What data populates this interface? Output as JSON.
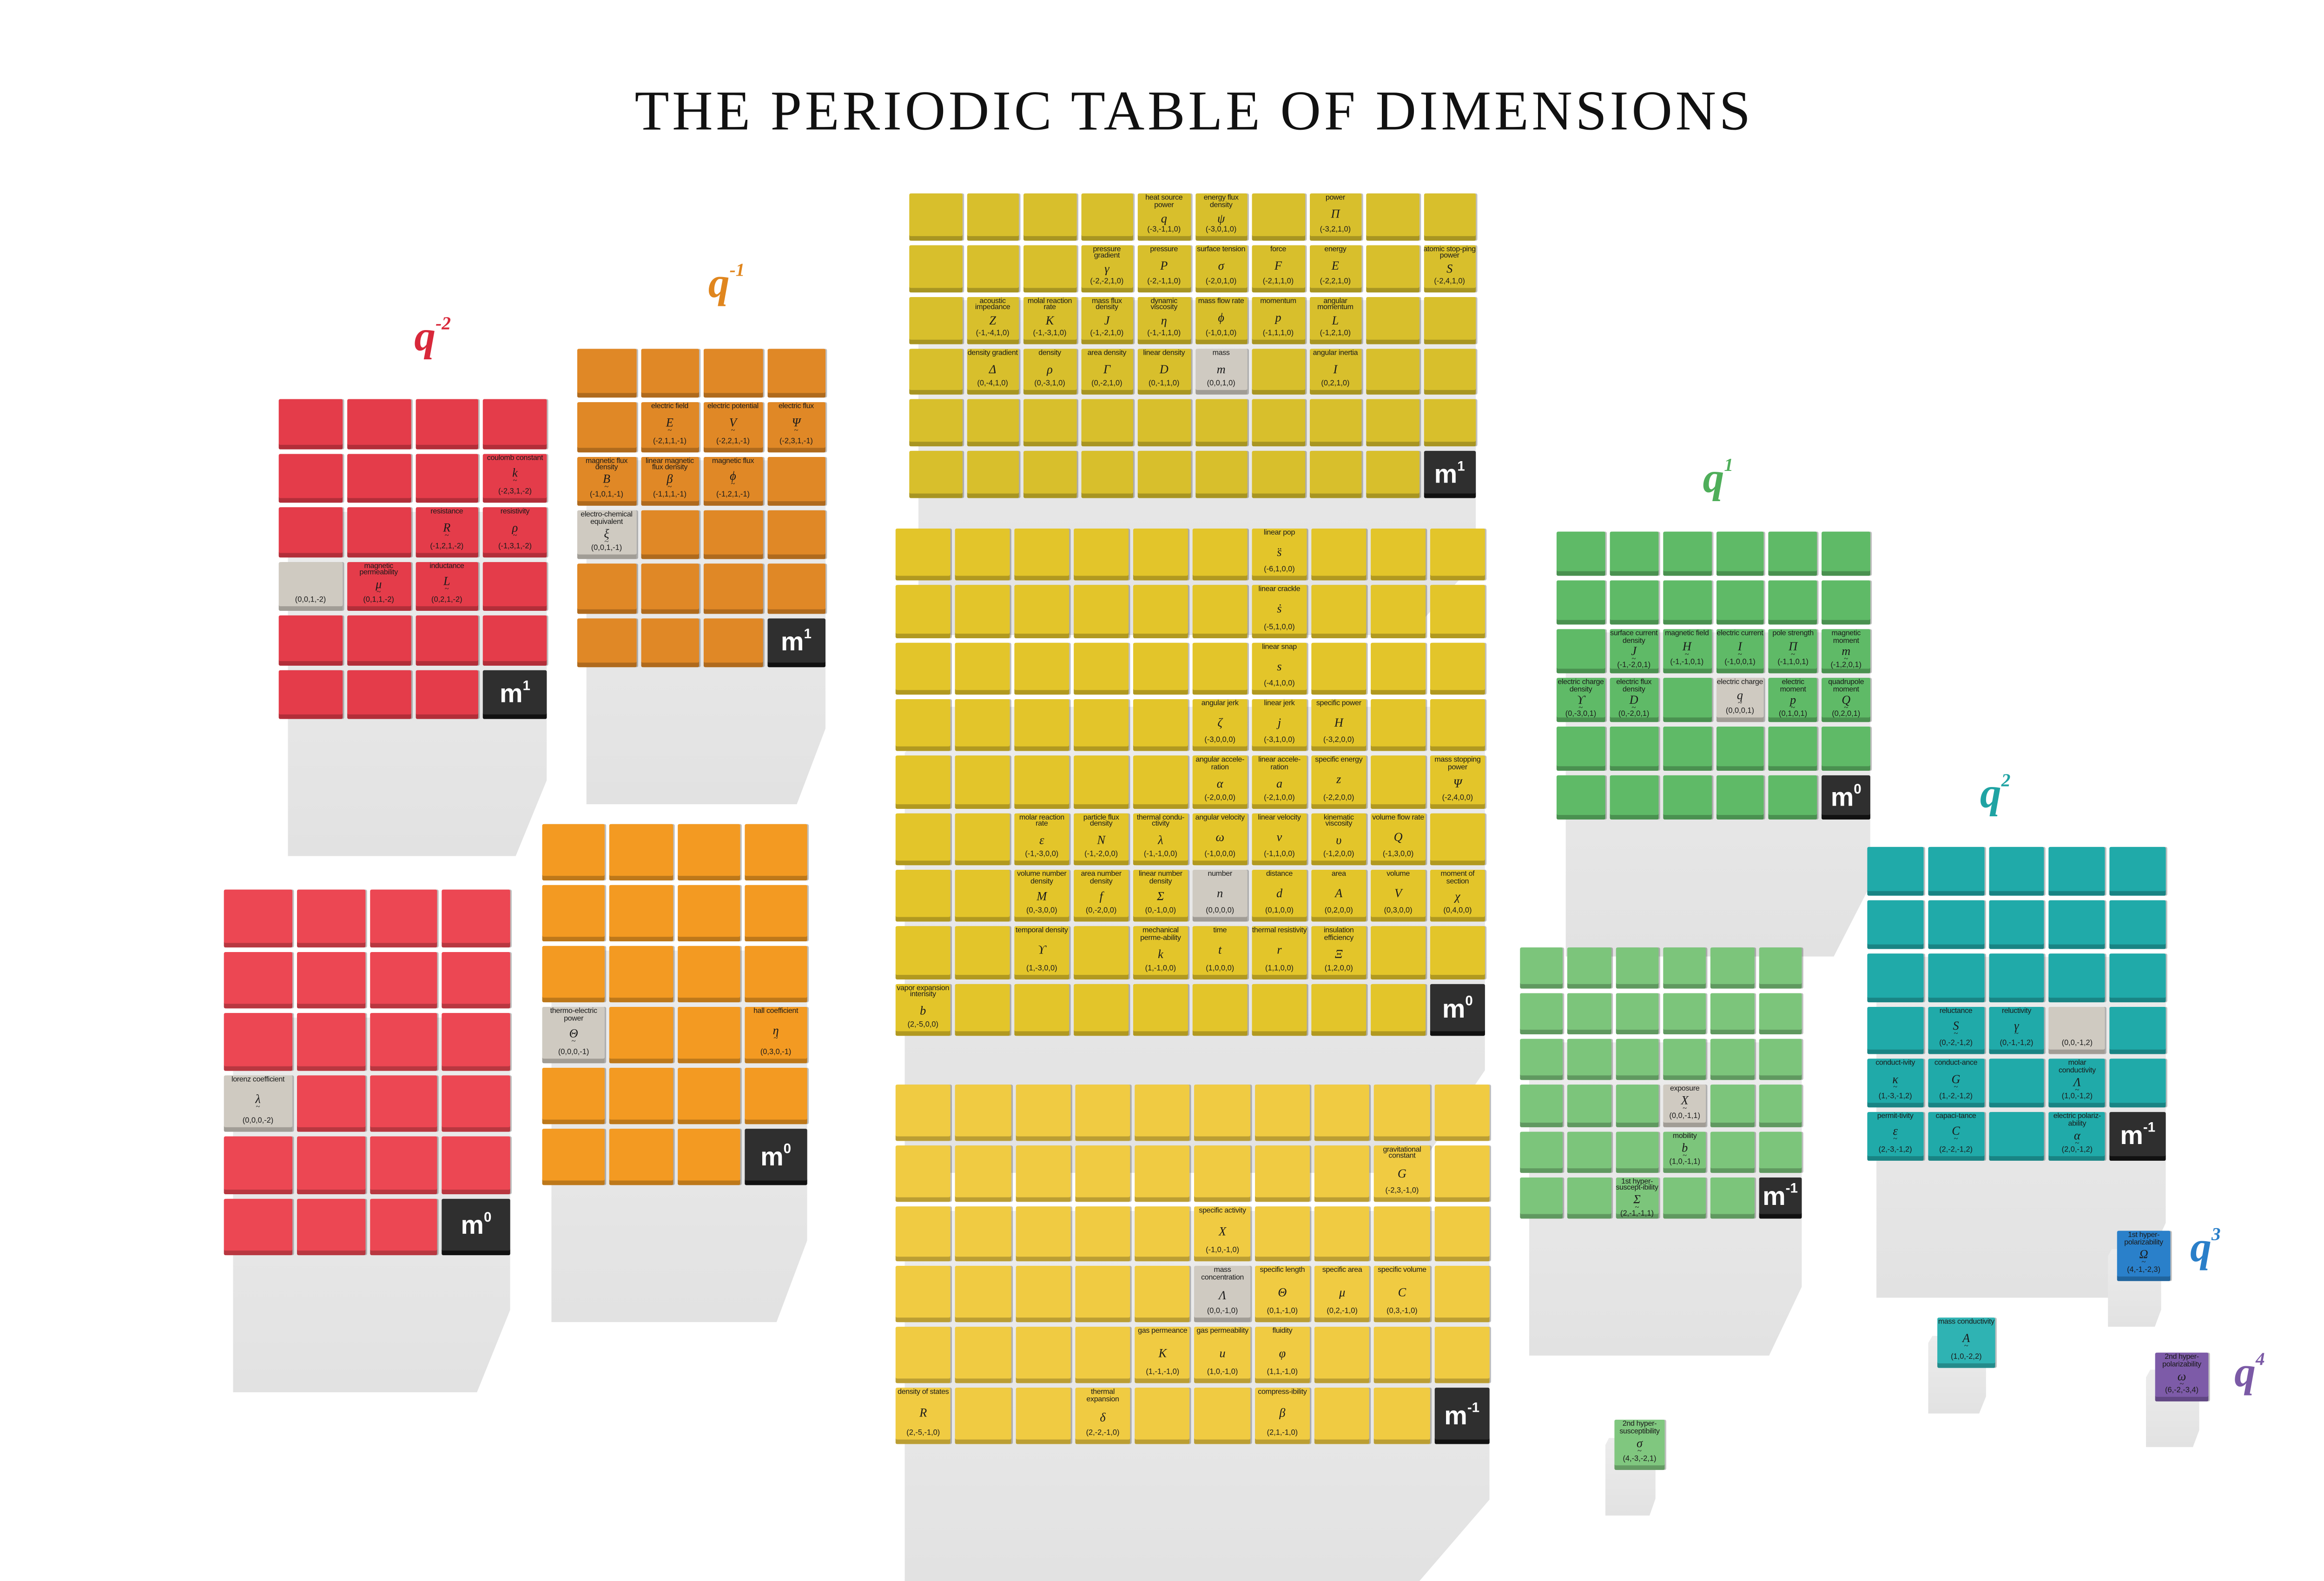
{
  "title": "THE PERIODIC TABLE OF DIMENSIONS",
  "groups": [
    {
      "id": "g-qm2",
      "base": "q",
      "exp": "-2",
      "color": "#d8283a"
    },
    {
      "id": "g-qm1",
      "base": "q",
      "exp": "-1",
      "color": "#e0861e"
    },
    {
      "id": "g-q1",
      "base": "q",
      "exp": "1",
      "color": "#4fae5a"
    },
    {
      "id": "g-q2",
      "base": "q",
      "exp": "2",
      "color": "#1fa3a3"
    },
    {
      "id": "g-q3",
      "base": "q",
      "exp": "3",
      "color": "#2a7fc9"
    },
    {
      "id": "g-q4",
      "base": "q",
      "exp": "4",
      "color": "#7b5aa6"
    }
  ],
  "blocks": [
    {
      "id": "b-red-m1",
      "color": "#e43c4a",
      "rows": 6,
      "cols": 4,
      "tilde": true,
      "badge": {
        "r": 6,
        "c": 4,
        "base": "m",
        "exp": "1"
      },
      "cells": [
        {
          "r": 2,
          "c": 4,
          "name": "coulomb constant",
          "sym": "k",
          "dims": "(-2,3,1,-2)"
        },
        {
          "r": 3,
          "c": 3,
          "name": "resistance",
          "sym": "R",
          "dims": "(-1,2,1,-2)"
        },
        {
          "r": 3,
          "c": 4,
          "name": "resistivity",
          "sym": "ρ",
          "dims": "(-1,3,1,-2)"
        },
        {
          "r": 4,
          "c": 1,
          "name": "",
          "sym": "",
          "dims": "(0,0,1,-2)",
          "gray": true
        },
        {
          "r": 4,
          "c": 2,
          "name": "magnetic permeability",
          "sym": "μ",
          "dims": "(0,1,1,-2)"
        },
        {
          "r": 4,
          "c": 3,
          "name": "inductance",
          "sym": "L",
          "dims": "(0,2,1,-2)"
        }
      ]
    },
    {
      "id": "b-red-m0",
      "color": "#ec4753",
      "rows": 6,
      "cols": 4,
      "tilde": true,
      "badge": {
        "r": 6,
        "c": 4,
        "base": "m",
        "exp": "0"
      },
      "cells": [
        {
          "r": 4,
          "c": 1,
          "name": "lorenz coefficient",
          "sym": "λ",
          "dims": "(0,0,0,-2)",
          "gray": true
        }
      ]
    },
    {
      "id": "b-orange-m1",
      "color": "#e08826",
      "rows": 6,
      "cols": 4,
      "tilde": true,
      "badge": {
        "r": 6,
        "c": 4,
        "base": "m",
        "exp": "1"
      },
      "cells": [
        {
          "r": 2,
          "c": 2,
          "name": "electric field",
          "sym": "E",
          "dims": "(-2,1,1,-1)"
        },
        {
          "r": 2,
          "c": 3,
          "name": "electric potential",
          "sym": "V",
          "dims": "(-2,2,1,-1)"
        },
        {
          "r": 2,
          "c": 4,
          "name": "electric flux",
          "sym": "Ψ",
          "dims": "(-2,3,1,-1)"
        },
        {
          "r": 3,
          "c": 1,
          "name": "magnetic flux density",
          "sym": "B",
          "dims": "(-1,0,1,-1)"
        },
        {
          "r": 3,
          "c": 2,
          "name": "linear magnetic flux density",
          "sym": "β",
          "dims": "(-1,1,1,-1)"
        },
        {
          "r": 3,
          "c": 3,
          "name": "magnetic flux",
          "sym": "ϕ",
          "dims": "(-1,2,1,-1)"
        },
        {
          "r": 4,
          "c": 1,
          "name": "electro-chemical equivalent",
          "sym": "ξ",
          "dims": "(0,0,1,-1)",
          "gray": true
        }
      ]
    },
    {
      "id": "b-orange-m0",
      "color": "#f39a22",
      "rows": 6,
      "cols": 4,
      "tilde": true,
      "badge": {
        "r": 6,
        "c": 4,
        "base": "m",
        "exp": "0"
      },
      "cells": [
        {
          "r": 4,
          "c": 1,
          "name": "thermo-electric power",
          "sym": "Θ",
          "dims": "(0,0,0,-1)",
          "gray": true
        },
        {
          "r": 4,
          "c": 4,
          "name": "hall coefficient",
          "sym": "η",
          "dims": "(0,3,0,-1)"
        }
      ]
    },
    {
      "id": "b-yellow-m1",
      "color": "#d8bf2c",
      "rows": 6,
      "cols": 10,
      "tilde": false,
      "badge": {
        "r": 6,
        "c": 10,
        "base": "m",
        "exp": "1"
      },
      "cells": [
        {
          "r": 1,
          "c": 5,
          "name": "heat source power",
          "sym": "q",
          "dims": "(-3,-1,1,0)"
        },
        {
          "r": 1,
          "c": 6,
          "name": "energy flux density",
          "sym": "ψ",
          "dims": "(-3,0,1,0)"
        },
        {
          "r": 1,
          "c": 8,
          "name": "power",
          "sym": "Π",
          "dims": "(-3,2,1,0)"
        },
        {
          "r": 2,
          "c": 4,
          "name": "pressure gradient",
          "sym": "γ",
          "dims": "(-2,-2,1,0)"
        },
        {
          "r": 2,
          "c": 5,
          "name": "pressure",
          "sym": "P",
          "dims": "(-2,-1,1,0)"
        },
        {
          "r": 2,
          "c": 6,
          "name": "surface tension",
          "sym": "σ",
          "dims": "(-2,0,1,0)"
        },
        {
          "r": 2,
          "c": 7,
          "name": "force",
          "sym": "F",
          "dims": "(-2,1,1,0)"
        },
        {
          "r": 2,
          "c": 8,
          "name": "energy",
          "sym": "E",
          "dims": "(-2,2,1,0)"
        },
        {
          "r": 2,
          "c": 10,
          "name": "atomic stop-ping power",
          "sym": "S",
          "dims": "(-2,4,1,0)"
        },
        {
          "r": 3,
          "c": 2,
          "name": "acoustic impedance",
          "sym": "Z",
          "dims": "(-1,-4,1,0)"
        },
        {
          "r": 3,
          "c": 3,
          "name": "molal reaction rate",
          "sym": "K",
          "dims": "(-1,-3,1,0)"
        },
        {
          "r": 3,
          "c": 4,
          "name": "mass flux density",
          "sym": "J",
          "dims": "(-1,-2,1,0)"
        },
        {
          "r": 3,
          "c": 5,
          "name": "dynamic viscosity",
          "sym": "η",
          "dims": "(-1,-1,1,0)"
        },
        {
          "r": 3,
          "c": 6,
          "name": "mass flow rate",
          "sym": "ϕ",
          "dims": "(-1,0,1,0)"
        },
        {
          "r": 3,
          "c": 7,
          "name": "momentum",
          "sym": "p",
          "dims": "(-1,1,1,0)"
        },
        {
          "r": 3,
          "c": 8,
          "name": "angular momentum",
          "sym": "L",
          "dims": "(-1,2,1,0)"
        },
        {
          "r": 4,
          "c": 2,
          "name": "density gradient",
          "sym": "Δ",
          "dims": "(0,-4,1,0)"
        },
        {
          "r": 4,
          "c": 3,
          "name": "density",
          "sym": "ρ",
          "dims": "(0,-3,1,0)"
        },
        {
          "r": 4,
          "c": 4,
          "name": "area density",
          "sym": "Γ",
          "dims": "(0,-2,1,0)"
        },
        {
          "r": 4,
          "c": 5,
          "name": "linear density",
          "sym": "D",
          "dims": "(0,-1,1,0)"
        },
        {
          "r": 4,
          "c": 6,
          "name": "mass",
          "sym": "m",
          "dims": "(0,0,1,0)",
          "gray": true
        },
        {
          "r": 4,
          "c": 8,
          "name": "angular inertia",
          "sym": "I",
          "dims": "(0,2,1,0)"
        }
      ]
    },
    {
      "id": "b-yellow-m0",
      "color": "#e3c52a",
      "rows": 9,
      "cols": 10,
      "tilde": false,
      "badge": {
        "r": 9,
        "c": 10,
        "base": "m",
        "exp": "0"
      },
      "cells": [
        {
          "r": 1,
          "c": 7,
          "name": "linear pop",
          "sym": "s̈",
          "dims": "(-6,1,0,0)"
        },
        {
          "r": 2,
          "c": 7,
          "name": "linear crackle",
          "sym": "ṡ",
          "dims": "(-5,1,0,0)"
        },
        {
          "r": 3,
          "c": 7,
          "name": "linear snap",
          "sym": "s",
          "dims": "(-4,1,0,0)"
        },
        {
          "r": 4,
          "c": 6,
          "name": "angular jerk",
          "sym": "ζ",
          "dims": "(-3,0,0,0)"
        },
        {
          "r": 4,
          "c": 7,
          "name": "linear jerk",
          "sym": "j",
          "dims": "(-3,1,0,0)"
        },
        {
          "r": 4,
          "c": 8,
          "name": "specific power",
          "sym": "H",
          "dims": "(-3,2,0,0)"
        },
        {
          "r": 5,
          "c": 6,
          "name": "angular accele-ration",
          "sym": "α",
          "dims": "(-2,0,0,0)"
        },
        {
          "r": 5,
          "c": 7,
          "name": "linear accele-ration",
          "sym": "a",
          "dims": "(-2,1,0,0)"
        },
        {
          "r": 5,
          "c": 8,
          "name": "specific energy",
          "sym": "z",
          "dims": "(-2,2,0,0)"
        },
        {
          "r": 5,
          "c": 10,
          "name": "mass stopping power",
          "sym": "Ψ",
          "dims": "(-2,4,0,0)"
        },
        {
          "r": 6,
          "c": 3,
          "name": "molar reaction rate",
          "sym": "ε",
          "dims": "(-1,-3,0,0)"
        },
        {
          "r": 6,
          "c": 4,
          "name": "particle flux density",
          "sym": "N",
          "dims": "(-1,-2,0,0)"
        },
        {
          "r": 6,
          "c": 5,
          "name": "thermal condu-ctivity",
          "sym": "λ",
          "dims": "(-1,-1,0,0)"
        },
        {
          "r": 6,
          "c": 6,
          "name": "angular velocity",
          "sym": "ω",
          "dims": "(-1,0,0,0)"
        },
        {
          "r": 6,
          "c": 7,
          "name": "linear velocity",
          "sym": "v",
          "dims": "(-1,1,0,0)"
        },
        {
          "r": 6,
          "c": 8,
          "name": "kinematic viscosity",
          "sym": "υ",
          "dims": "(-1,2,0,0)"
        },
        {
          "r": 6,
          "c": 9,
          "name": "volume flow rate",
          "sym": "Q",
          "dims": "(-1,3,0,0)"
        },
        {
          "r": 7,
          "c": 3,
          "name": "volume number density",
          "sym": "M",
          "dims": "(0,-3,0,0)"
        },
        {
          "r": 7,
          "c": 4,
          "name": "area number density",
          "sym": "f",
          "dims": "(0,-2,0,0)"
        },
        {
          "r": 7,
          "c": 5,
          "name": "linear number density",
          "sym": "Σ",
          "dims": "(0,-1,0,0)"
        },
        {
          "r": 7,
          "c": 6,
          "name": "number",
          "sym": "n",
          "dims": "(0,0,0,0)",
          "gray": true
        },
        {
          "r": 7,
          "c": 7,
          "name": "distance",
          "sym": "d",
          "dims": "(0,1,0,0)"
        },
        {
          "r": 7,
          "c": 8,
          "name": "area",
          "sym": "A",
          "dims": "(0,2,0,0)"
        },
        {
          "r": 7,
          "c": 9,
          "name": "volume",
          "sym": "V",
          "dims": "(0,3,0,0)"
        },
        {
          "r": 7,
          "c": 10,
          "name": "moment of section",
          "sym": "χ",
          "dims": "(0,4,0,0)"
        },
        {
          "r": 8,
          "c": 3,
          "name": "temporal density",
          "sym": "ϒ",
          "dims": "(1,-3,0,0)"
        },
        {
          "r": 8,
          "c": 5,
          "name": "mechanical perme-ability",
          "sym": "k",
          "dims": "(1,-1,0,0)"
        },
        {
          "r": 8,
          "c": 6,
          "name": "time",
          "sym": "t",
          "dims": "(1,0,0,0)"
        },
        {
          "r": 8,
          "c": 7,
          "name": "thermal resistivity",
          "sym": "r",
          "dims": "(1,1,0,0)"
        },
        {
          "r": 8,
          "c": 8,
          "name": "insulation efficiency",
          "sym": "Ξ",
          "dims": "(1,2,0,0)"
        },
        {
          "r": 9,
          "c": 1,
          "name": "vapor expansion intensity",
          "sym": "b",
          "dims": "(2,-5,0,0)"
        }
      ]
    },
    {
      "id": "b-yellow-mm1",
      "color": "#f0cb42",
      "rows": 6,
      "cols": 10,
      "tilde": false,
      "badge": {
        "r": 6,
        "c": 10,
        "base": "m",
        "exp": "-1"
      },
      "cells": [
        {
          "r": 2,
          "c": 9,
          "name": "gravitational constant",
          "sym": "G",
          "dims": "(-2,3,-1,0)"
        },
        {
          "r": 3,
          "c": 6,
          "name": "specific activity",
          "sym": "X",
          "dims": "(-1,0,-1,0)"
        },
        {
          "r": 4,
          "c": 6,
          "name": "mass concentration",
          "sym": "Λ",
          "dims": "(0,0,-1,0)",
          "gray": true
        },
        {
          "r": 4,
          "c": 7,
          "name": "specific length",
          "sym": "Θ",
          "dims": "(0,1,-1,0)"
        },
        {
          "r": 4,
          "c": 8,
          "name": "specific area",
          "sym": "μ",
          "dims": "(0,2,-1,0)"
        },
        {
          "r": 4,
          "c": 9,
          "name": "specific volume",
          "sym": "C",
          "dims": "(0,3,-1,0)"
        },
        {
          "r": 5,
          "c": 5,
          "name": "gas permeance",
          "sym": "K",
          "dims": "(1,-1,-1,0)"
        },
        {
          "r": 5,
          "c": 6,
          "name": "gas permeability",
          "sym": "u",
          "dims": "(1,0,-1,0)"
        },
        {
          "r": 5,
          "c": 7,
          "name": "fluidity",
          "sym": "φ",
          "dims": "(1,1,-1,0)"
        },
        {
          "r": 6,
          "c": 1,
          "name": "density of states",
          "sym": "R",
          "dims": "(2,-5,-1,0)"
        },
        {
          "r": 6,
          "c": 4,
          "name": "thermal expansion",
          "sym": "δ",
          "dims": "(2,-2,-1,0)"
        },
        {
          "r": 6,
          "c": 7,
          "name": "compress-ibility",
          "sym": "β",
          "dims": "(2,1,-1,0)"
        }
      ]
    },
    {
      "id": "b-green-m0",
      "color": "#5fba67",
      "rows": 6,
      "cols": 6,
      "tilde": true,
      "badge": {
        "r": 6,
        "c": 6,
        "base": "m",
        "exp": "0"
      },
      "cells": [
        {
          "r": 3,
          "c": 2,
          "name": "surface current density",
          "sym": "J",
          "dims": "(-1,-2,0,1)"
        },
        {
          "r": 3,
          "c": 3,
          "name": "magnetic field",
          "sym": "H",
          "dims": "(-1,-1,0,1)"
        },
        {
          "r": 3,
          "c": 4,
          "name": "electric current",
          "sym": "I",
          "dims": "(-1,0,0,1)"
        },
        {
          "r": 3,
          "c": 5,
          "name": "pole strength",
          "sym": "Π",
          "dims": "(-1,1,0,1)"
        },
        {
          "r": 3,
          "c": 6,
          "name": "magnetic moment",
          "sym": "m",
          "dims": "(-1,2,0,1)"
        },
        {
          "r": 4,
          "c": 1,
          "name": "electric charge density",
          "sym": "ϒ",
          "dims": "(0,-3,0,1)"
        },
        {
          "r": 4,
          "c": 2,
          "name": "electric flux density",
          "sym": "D",
          "dims": "(0,-2,0,1)"
        },
        {
          "r": 4,
          "c": 4,
          "name": "electric charge",
          "sym": "q",
          "dims": "(0,0,0,1)",
          "gray": true
        },
        {
          "r": 4,
          "c": 5,
          "name": "electric moment",
          "sym": "p",
          "dims": "(0,1,0,1)"
        },
        {
          "r": 4,
          "c": 6,
          "name": "quadrupole moment",
          "sym": "Q",
          "dims": "(0,2,0,1)"
        }
      ]
    },
    {
      "id": "b-green-mm1",
      "color": "#7cc57b",
      "rows": 6,
      "cols": 6,
      "tilde": true,
      "badge": {
        "r": 6,
        "c": 6,
        "base": "m",
        "exp": "-1"
      },
      "cells": [
        {
          "r": 4,
          "c": 4,
          "name": "exposure",
          "sym": "X",
          "dims": "(0,0,-1,1)",
          "gray": true
        },
        {
          "r": 5,
          "c": 4,
          "name": "mobility",
          "sym": "b",
          "dims": "(1,0,-1,1)"
        },
        {
          "r": 6,
          "c": 3,
          "name": "1st hyper-suscept-ibility",
          "sym": "Σ",
          "dims": "(2,-1,-1,1)"
        }
      ]
    },
    {
      "id": "b-teal-mm1",
      "color": "#20aaa9",
      "rows": 6,
      "cols": 5,
      "tilde": true,
      "badge": {
        "r": 6,
        "c": 5,
        "base": "m",
        "exp": "-1"
      },
      "cells": [
        {
          "r": 4,
          "c": 2,
          "name": "reluctance",
          "sym": "S",
          "dims": "(0,-2,-1,2)"
        },
        {
          "r": 4,
          "c": 3,
          "name": "reluctivity",
          "sym": "γ",
          "dims": "(0,-1,-1,2)"
        },
        {
          "r": 4,
          "c": 4,
          "name": "",
          "sym": "",
          "dims": "(0,0,-1,2)",
          "gray": true
        },
        {
          "r": 5,
          "c": 1,
          "name": "conduct-ivity",
          "sym": "κ",
          "dims": "(1,-3,-1,2)"
        },
        {
          "r": 5,
          "c": 2,
          "name": "conduct-ance",
          "sym": "G",
          "dims": "(1,-2,-1,2)"
        },
        {
          "r": 5,
          "c": 4,
          "name": "molar conductivity",
          "sym": "Λ",
          "dims": "(1,0,-1,2)"
        },
        {
          "r": 6,
          "c": 1,
          "name": "permit-tivity",
          "sym": "ε",
          "dims": "(2,-3,-1,2)"
        },
        {
          "r": 6,
          "c": 2,
          "name": "capaci-tance",
          "sym": "C",
          "dims": "(2,-2,-1,2)"
        },
        {
          "r": 6,
          "c": 4,
          "name": "electric polariz-ability",
          "sym": "α",
          "dims": "(2,0,-1,2)"
        }
      ]
    },
    {
      "id": "b-single-blue",
      "color": "#2a80ca",
      "rows": 1,
      "cols": 1,
      "tilde": true,
      "cells": [
        {
          "r": 1,
          "c": 1,
          "name": "1st hyper-polarizability",
          "sym": "Ω",
          "dims": "(4,-1,-2,3)"
        }
      ]
    },
    {
      "id": "b-single-teal",
      "color": "#2fb3b3",
      "rows": 1,
      "cols": 1,
      "tilde": true,
      "cells": [
        {
          "r": 1,
          "c": 1,
          "name": "mass conductivity",
          "sym": "A",
          "dims": "(1,0,-2,2)"
        }
      ]
    },
    {
      "id": "b-single-purple",
      "color": "#7d5ba8",
      "rows": 1,
      "cols": 1,
      "tilde": true,
      "cells": [
        {
          "r": 1,
          "c": 1,
          "name": "2nd hyper-polarizability",
          "sym": "ω",
          "dims": "(6,-2,-3,4)"
        }
      ]
    },
    {
      "id": "b-single-green",
      "color": "#80c77f",
      "rows": 1,
      "cols": 1,
      "tilde": true,
      "cells": [
        {
          "r": 1,
          "c": 1,
          "name": "2nd hyper-susceptibility",
          "sym": "σ",
          "dims": "(4,-3,-2,1)"
        }
      ]
    }
  ]
}
